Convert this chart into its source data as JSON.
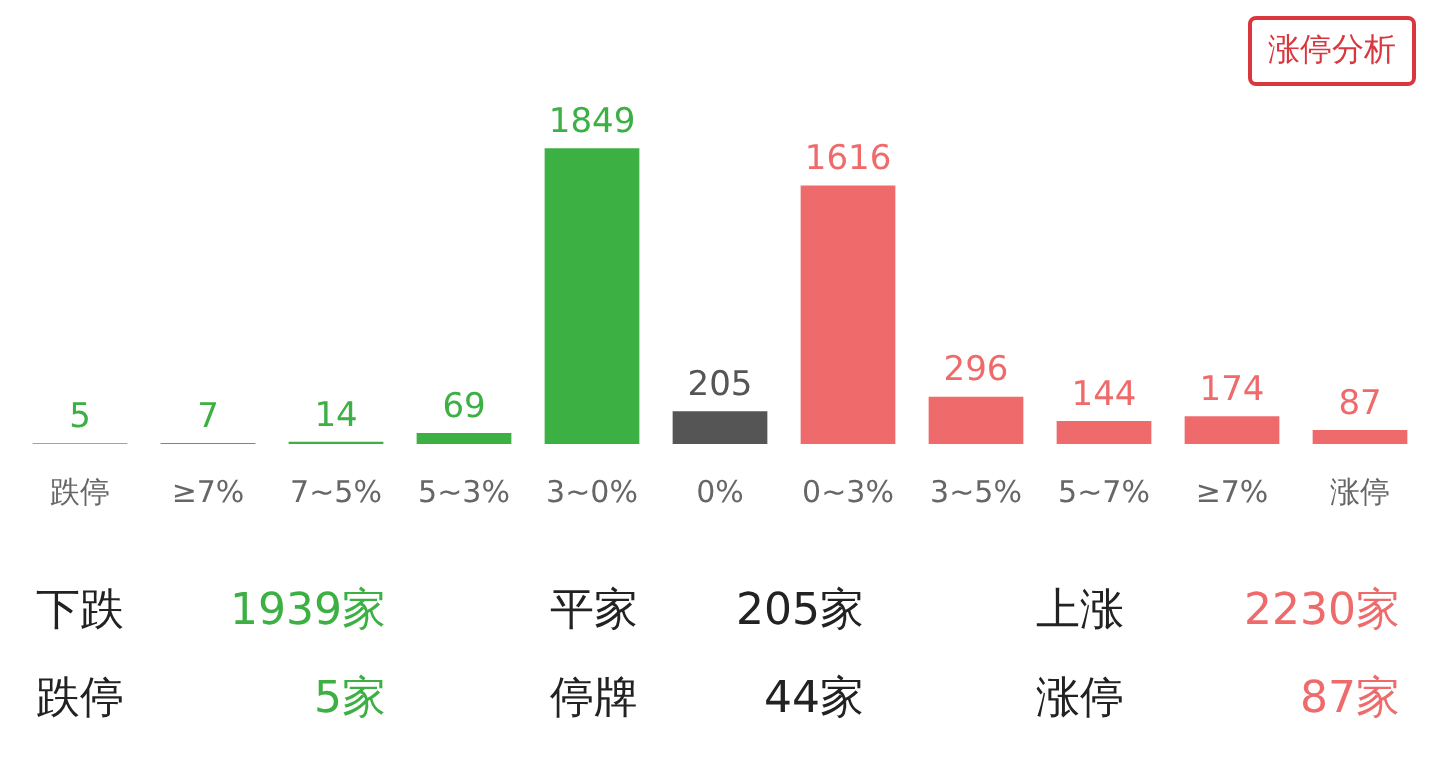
{
  "chart_data": {
    "type": "bar",
    "categories": [
      "跌停",
      "≥7%",
      "7~5%",
      "5~3%",
      "3~0%",
      "0%",
      "0~3%",
      "3~5%",
      "5~7%",
      "≥7%",
      "涨停"
    ],
    "values": [
      5,
      7,
      14,
      69,
      1849,
      205,
      1616,
      296,
      144,
      174,
      87
    ],
    "colors": [
      "#3cb043",
      "#3cb043",
      "#3cb043",
      "#3cb043",
      "#3cb043",
      "#555555",
      "#ef6b6b",
      "#ef6b6b",
      "#ef6b6b",
      "#ef6b6b",
      "#ef6b6b"
    ],
    "data_labels": true,
    "grid": false,
    "legend": false,
    "annotations": [
      "涨停分析",
      "下跌",
      "1939家",
      "平家",
      "205家",
      "上涨",
      "2230家",
      "跌停",
      "5家",
      "停牌",
      "44家",
      "涨停",
      "87家"
    ]
  }
}
